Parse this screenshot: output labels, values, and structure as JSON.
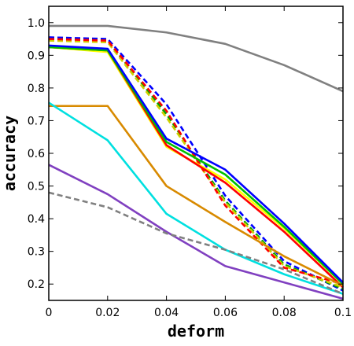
{
  "chart_data": {
    "type": "line",
    "title": "",
    "xlabel": "deform",
    "ylabel": "accuracy",
    "xlim": [
      0,
      0.1
    ],
    "ylim": [
      0.15,
      1.05
    ],
    "x": [
      0,
      0.02,
      0.04,
      0.06,
      0.08,
      0.1
    ],
    "x_ticks": [
      "0",
      "0.02",
      "0.04",
      "0.06",
      "0.08",
      "0.1"
    ],
    "y_ticks": [
      "0.2",
      "0.3",
      "0.4",
      "0.5",
      "0.6",
      "0.7",
      "0.8",
      "0.9",
      "1.0"
    ],
    "y_tick_values": [
      0.2,
      0.3,
      0.4,
      0.5,
      0.6,
      0.7,
      0.8,
      0.9,
      1.0
    ],
    "grid": false,
    "legend": false,
    "series": [
      {
        "color": "#808080",
        "dash": "solid",
        "values": [
          0.99,
          0.99,
          0.97,
          0.935,
          0.87,
          0.79
        ]
      },
      {
        "color": "#0000ff",
        "dash": "dashed",
        "values": [
          0.955,
          0.95,
          0.75,
          0.47,
          0.27,
          0.18
        ]
      },
      {
        "color": "#00a000",
        "dash": "dashed",
        "values": [
          0.95,
          0.945,
          0.72,
          0.455,
          0.26,
          0.185
        ]
      },
      {
        "color": "#d0d000",
        "dash": "dashed",
        "values": [
          0.945,
          0.94,
          0.71,
          0.45,
          0.255,
          0.19
        ]
      },
      {
        "color": "#ff0000",
        "dash": "dashed",
        "values": [
          0.95,
          0.945,
          0.73,
          0.44,
          0.25,
          0.2
        ]
      },
      {
        "color": "#ffff00",
        "dash": "solid",
        "values": [
          0.925,
          0.91,
          0.62,
          0.52,
          0.37,
          0.2
        ]
      },
      {
        "color": "#ff0000",
        "dash": "solid",
        "values": [
          0.925,
          0.915,
          0.625,
          0.51,
          0.36,
          0.19
        ]
      },
      {
        "color": "#00c000",
        "dash": "solid",
        "values": [
          0.925,
          0.915,
          0.635,
          0.535,
          0.375,
          0.2
        ]
      },
      {
        "color": "#0000ff",
        "dash": "solid",
        "values": [
          0.93,
          0.92,
          0.645,
          0.55,
          0.385,
          0.205
        ]
      },
      {
        "color": "#d88a00",
        "dash": "solid",
        "values": [
          0.745,
          0.745,
          0.5,
          0.39,
          0.285,
          0.195
        ]
      },
      {
        "color": "#00e0e0",
        "dash": "solid",
        "values": [
          0.755,
          0.64,
          0.415,
          0.305,
          0.23,
          0.17
        ]
      },
      {
        "color": "#8040c0",
        "dash": "solid",
        "values": [
          0.565,
          0.475,
          0.36,
          0.255,
          0.205,
          0.155
        ]
      },
      {
        "color": "#808080",
        "dash": "dashed",
        "values": [
          0.48,
          0.435,
          0.355,
          0.305,
          0.245,
          0.17
        ]
      }
    ]
  }
}
